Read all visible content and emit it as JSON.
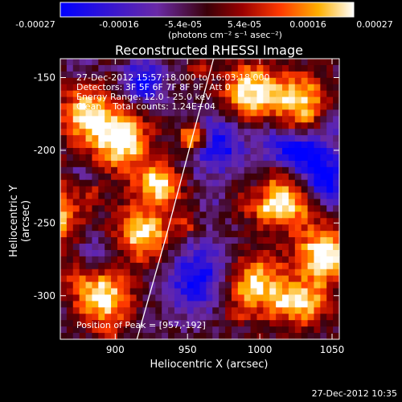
{
  "colorbar": {
    "ticks": [
      "-0.00027",
      "-0.00016",
      "-5.4e-05",
      "5.4e-05",
      "0.00016",
      "0.00027"
    ],
    "unit": "(photons cm⁻² s⁻¹ asec⁻²)"
  },
  "annotations": {
    "time": "27-Dec-2012 15:57:18.000 to 16:03:18.000",
    "detectors": "Detectors: 3F 5F 6F 7F 8F 9F, Att 0",
    "energy": "Energy Range: 12.0 - 25.0 keV",
    "clean": "Clean    Total counts: 1.24E+04",
    "peak": "Position of Peak = [957,-192]"
  },
  "datestamp": "27-Dec-2012 10:35",
  "chart_data": {
    "type": "heatmap",
    "title": "Reconstructed RHESSI Image",
    "xlabel": "Heliocentric X (arcsec)",
    "ylabel": "Heliocentric Y (arcsec)",
    "xlim": [
      862,
      1055
    ],
    "ylim": [
      -330,
      -137
    ],
    "xticks": [
      900,
      950,
      1000,
      1050
    ],
    "yticks": [
      -150,
      -200,
      -250,
      -300
    ],
    "colorbar_range": [
      -0.00027,
      0.00027
    ],
    "peak": {
      "x": 957,
      "y": -192
    },
    "limb_curve": {
      "x": [
        915,
        935,
        955,
        968
      ],
      "y": [
        -330,
        -260,
        -185,
        -137
      ]
    }
  }
}
